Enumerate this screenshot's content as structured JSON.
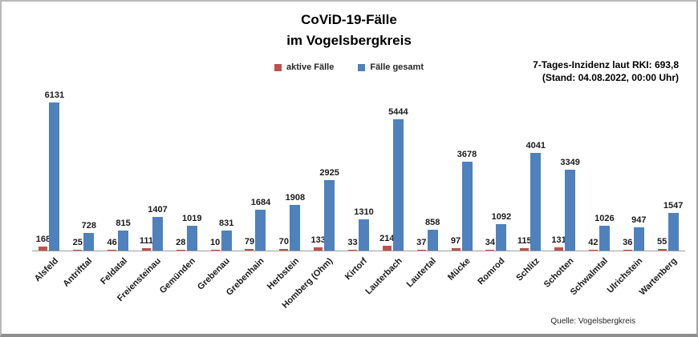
{
  "title": {
    "line1": "CoViD-19-Fälle",
    "line2": "im Vogelsbergkreis"
  },
  "legend": [
    {
      "label": "aktive Fälle",
      "color": "#c0504d"
    },
    {
      "label": "Fälle gesamt",
      "color": "#4f81bd"
    }
  ],
  "annotation": {
    "line1": "7-Tages-Inzidenz laut RKI: 693,8",
    "line2": "(Stand: 04.08.2022, 00:00 Uhr)"
  },
  "source": "Quelle: Vogelsbergkreis",
  "chart_data": {
    "type": "bar",
    "title": "CoViD-19-Fälle im Vogelsbergkreis",
    "categories": [
      "Alsfeld",
      "Antrifttal",
      "Feldatal",
      "Freiensteinau",
      "Gemünden",
      "Grebenau",
      "Grebenhain",
      "Herbstein",
      "Homberg (Ohm)",
      "Kirtorf",
      "Lauterbach",
      "Lautertal",
      "Mücke",
      "Romrod",
      "Schlitz",
      "Schotten",
      "Schwalmtal",
      "Ulrichstein",
      "Wartenberg"
    ],
    "series": [
      {
        "name": "aktive Fälle",
        "color": "#c0504d",
        "values": [
          168,
          25,
          46,
          111,
          28,
          10,
          79,
          70,
          133,
          33,
          214,
          37,
          97,
          34,
          115,
          131,
          42,
          36,
          55
        ]
      },
      {
        "name": "Fälle gesamt",
        "color": "#4f81bd",
        "values": [
          6131,
          728,
          815,
          1407,
          1019,
          831,
          1684,
          1908,
          2925,
          1310,
          5444,
          858,
          3678,
          1092,
          4041,
          3349,
          1026,
          947,
          1547
        ]
      }
    ],
    "xlabel": "",
    "ylabel": "",
    "ylim": [
      0,
      7000
    ],
    "grid": false,
    "legend_position": "top",
    "data_labels": true
  }
}
